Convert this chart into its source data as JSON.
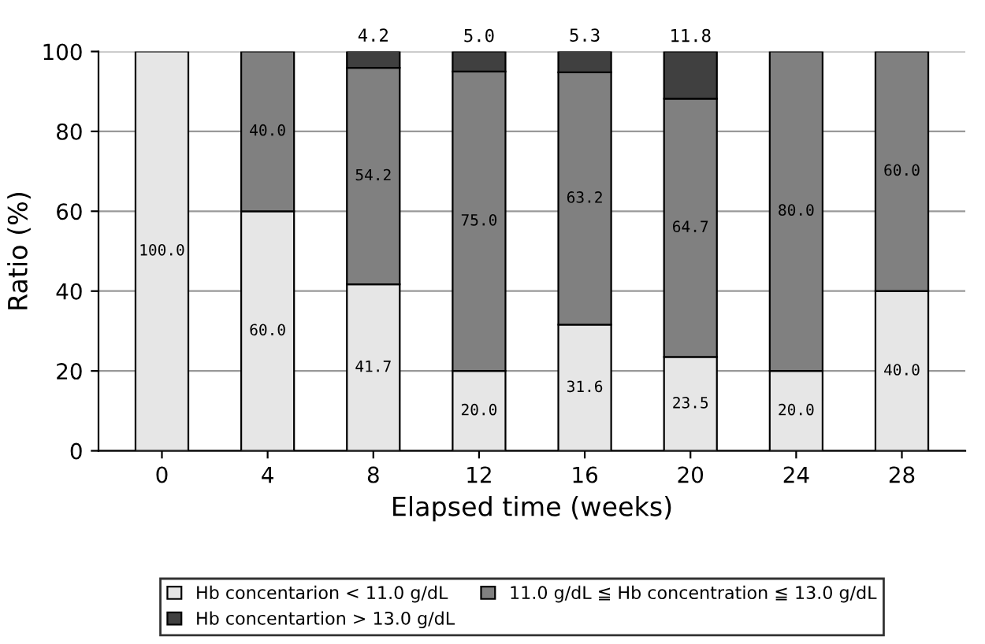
{
  "chart_data": {
    "type": "bar",
    "stacked": true,
    "xlabel": "Elapsed time (weeks)",
    "ylabel": "Ratio (%)",
    "categories": [
      "0",
      "4",
      "8",
      "12",
      "16",
      "20",
      "24",
      "28"
    ],
    "series": [
      {
        "name": "Hb concentarion < 11.0 g/dL",
        "color": "#e6e6e6",
        "values": [
          100.0,
          60.0,
          41.7,
          20.0,
          31.6,
          23.5,
          20.0,
          40.0
        ],
        "value_labels": [
          "100.0",
          "60.0",
          "41.7",
          "20.0",
          "31.6",
          "23.5",
          "20.0",
          "40.0"
        ]
      },
      {
        "name": "11.0 g/dL ≦ Hb concentration ≦ 13.0 g/dL",
        "color": "#808080",
        "values": [
          null,
          40.0,
          54.2,
          75.0,
          63.2,
          64.7,
          80.0,
          60.0
        ],
        "value_labels": [
          null,
          "40.0",
          "54.2",
          "75.0",
          "63.2",
          "64.7",
          "80.0",
          "60.0"
        ]
      },
      {
        "name": "Hb concentartion > 13.0 g/dL",
        "color": "#404040",
        "values": [
          null,
          null,
          4.2,
          5.0,
          5.3,
          11.8,
          null,
          null
        ],
        "value_labels": [
          null,
          null,
          "4.2",
          "5.0",
          "5.3",
          "11.8",
          null,
          null
        ]
      }
    ],
    "ylim": [
      0,
      100
    ],
    "yticks": [
      0,
      20,
      40,
      60,
      80,
      100
    ],
    "grid": "y",
    "legend": "bottom"
  }
}
